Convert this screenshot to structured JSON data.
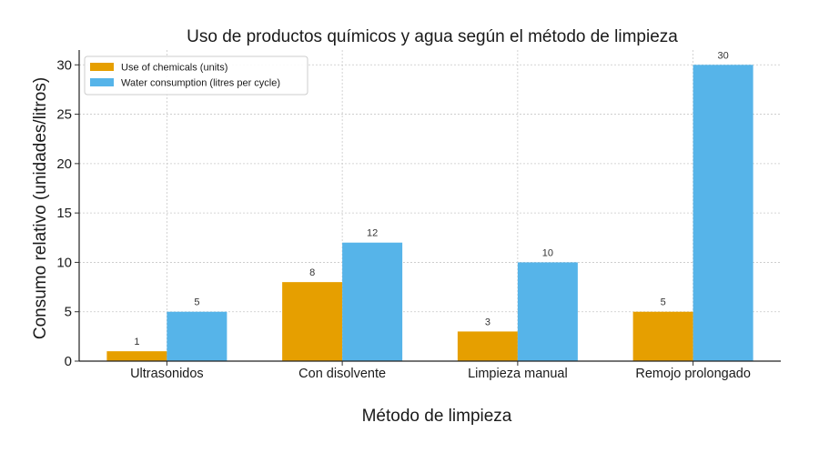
{
  "chart_data": {
    "type": "bar",
    "title": "Uso de productos químicos y agua según el método de limpieza",
    "xlabel": "Método de limpieza",
    "ylabel": "Consumo relativo (unidades/litros)",
    "categories": [
      "Ultrasonidos",
      "Con disolvente",
      "Limpieza manual",
      "Remojo prolongado"
    ],
    "series": [
      {
        "name": "Use of chemicals (units)",
        "color": "#E69F00",
        "values": [
          1,
          8,
          3,
          5
        ]
      },
      {
        "name": "Water consumption (litres per cycle)",
        "color": "#56B4E9",
        "values": [
          5,
          12,
          10,
          30
        ]
      }
    ],
    "ylim": [
      0,
      31.5
    ],
    "yticks": [
      0,
      5,
      10,
      15,
      20,
      25,
      30
    ],
    "grid": true,
    "legend": "top-left"
  }
}
